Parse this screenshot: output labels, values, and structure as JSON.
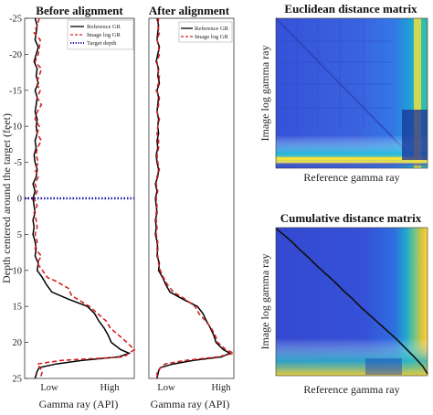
{
  "chart_data": [
    {
      "type": "line",
      "title": "Before alignment",
      "xlabel": "Gamma ray (API)",
      "ylabel": "Depth centered around the target (feet)",
      "xticklabels": [
        "Low",
        "High"
      ],
      "xlim": [
        0,
        1.05
      ],
      "ylim": [
        25,
        -25
      ],
      "yticks": [
        -25,
        -20,
        -15,
        -10,
        -5,
        0,
        5,
        10,
        15,
        20,
        25
      ],
      "legend": [
        "Reference GR",
        "Image log GR",
        "Target depth"
      ],
      "legend_position": "top-right",
      "series": [
        {
          "name": "Reference GR",
          "color": "#000000",
          "style": "solid",
          "points": [
            [
              0.1,
              -25
            ],
            [
              0.12,
              -24
            ],
            [
              0.11,
              -23
            ],
            [
              0.1,
              -22
            ],
            [
              0.13,
              -21
            ],
            [
              0.11,
              -20
            ],
            [
              0.09,
              -19
            ],
            [
              0.12,
              -18
            ],
            [
              0.11,
              -17
            ],
            [
              0.13,
              -16
            ],
            [
              0.1,
              -15
            ],
            [
              0.12,
              -14
            ],
            [
              0.11,
              -13
            ],
            [
              0.1,
              -12
            ],
            [
              0.12,
              -11
            ],
            [
              0.11,
              -10
            ],
            [
              0.12,
              -9
            ],
            [
              0.1,
              -8
            ],
            [
              0.11,
              -7
            ],
            [
              0.09,
              -6
            ],
            [
              0.1,
              -5
            ],
            [
              0.12,
              -4
            ],
            [
              0.11,
              -3
            ],
            [
              0.08,
              -2
            ],
            [
              0.1,
              -1
            ],
            [
              0.08,
              0
            ],
            [
              0.09,
              1
            ],
            [
              0.1,
              2
            ],
            [
              0.08,
              3
            ],
            [
              0.09,
              4
            ],
            [
              0.08,
              5
            ],
            [
              0.1,
              6
            ],
            [
              0.11,
              7
            ],
            [
              0.1,
              8
            ],
            [
              0.13,
              9
            ],
            [
              0.12,
              10
            ],
            [
              0.17,
              11
            ],
            [
              0.21,
              12
            ],
            [
              0.26,
              13
            ],
            [
              0.42,
              14
            ],
            [
              0.6,
              15
            ],
            [
              0.67,
              16
            ],
            [
              0.71,
              17
            ],
            [
              0.76,
              18
            ],
            [
              0.8,
              19
            ],
            [
              0.83,
              20
            ],
            [
              0.92,
              21
            ],
            [
              1.0,
              21.5
            ],
            [
              0.9,
              22
            ],
            [
              0.55,
              22.5
            ],
            [
              0.3,
              23
            ],
            [
              0.14,
              23.5
            ],
            [
              0.12,
              24
            ],
            [
              0.1,
              25
            ]
          ]
        },
        {
          "name": "Image log GR",
          "color": "#d42020",
          "style": "dashed",
          "points": [
            [
              0.14,
              -25
            ],
            [
              0.12,
              -24
            ],
            [
              0.09,
              -23
            ],
            [
              0.15,
              -22
            ],
            [
              0.14,
              -21
            ],
            [
              0.13,
              -20
            ],
            [
              0.1,
              -19
            ],
            [
              0.16,
              -18
            ],
            [
              0.14,
              -17
            ],
            [
              0.11,
              -16
            ],
            [
              0.15,
              -15
            ],
            [
              0.12,
              -14
            ],
            [
              0.16,
              -13
            ],
            [
              0.12,
              -12
            ],
            [
              0.1,
              -11
            ],
            [
              0.14,
              -10
            ],
            [
              0.12,
              -9
            ],
            [
              0.16,
              -8
            ],
            [
              0.12,
              -7
            ],
            [
              0.11,
              -6
            ],
            [
              0.13,
              -5
            ],
            [
              0.1,
              -4
            ],
            [
              0.13,
              -3
            ],
            [
              0.1,
              -2
            ],
            [
              0.12,
              -1
            ],
            [
              0.09,
              0
            ],
            [
              0.12,
              1
            ],
            [
              0.09,
              2
            ],
            [
              0.11,
              3
            ],
            [
              0.12,
              4
            ],
            [
              0.1,
              5
            ],
            [
              0.12,
              6
            ],
            [
              0.1,
              7
            ],
            [
              0.16,
              8
            ],
            [
              0.12,
              9
            ],
            [
              0.17,
              10
            ],
            [
              0.22,
              11
            ],
            [
              0.3,
              11.5
            ],
            [
              0.42,
              12.5
            ],
            [
              0.45,
              13.5
            ],
            [
              0.62,
              15
            ],
            [
              0.7,
              16
            ],
            [
              0.78,
              17
            ],
            [
              0.82,
              18
            ],
            [
              0.9,
              19
            ],
            [
              0.98,
              20
            ],
            [
              1.05,
              21
            ],
            [
              0.95,
              22
            ],
            [
              0.35,
              22.5
            ],
            [
              0.12,
              23
            ],
            [
              0.17,
              24
            ],
            [
              0.15,
              25
            ]
          ]
        },
        {
          "name": "Target depth",
          "color": "#1a1aa8",
          "style": "dotted",
          "points": [
            [
              0,
              0
            ],
            [
              1.05,
              0
            ]
          ]
        }
      ]
    },
    {
      "type": "line",
      "title": "After alignment",
      "xlabel": "Gamma ray (API)",
      "xticklabels": [
        "Low",
        "High"
      ],
      "xlim": [
        0,
        1.05
      ],
      "ylim": [
        25,
        -25
      ],
      "legend": [
        "Reference GR",
        "Image log GR"
      ],
      "legend_position": "top-right",
      "series": [
        {
          "name": "Reference GR",
          "color": "#000000",
          "style": "solid",
          "points": [
            [
              0.1,
              -25
            ],
            [
              0.12,
              -24
            ],
            [
              0.11,
              -23
            ],
            [
              0.1,
              -22
            ],
            [
              0.13,
              -21
            ],
            [
              0.11,
              -20
            ],
            [
              0.09,
              -19
            ],
            [
              0.12,
              -18
            ],
            [
              0.11,
              -17
            ],
            [
              0.13,
              -16
            ],
            [
              0.1,
              -15
            ],
            [
              0.12,
              -14
            ],
            [
              0.11,
              -13
            ],
            [
              0.1,
              -12
            ],
            [
              0.12,
              -11
            ],
            [
              0.11,
              -10
            ],
            [
              0.12,
              -9
            ],
            [
              0.1,
              -8
            ],
            [
              0.11,
              -7
            ],
            [
              0.09,
              -6
            ],
            [
              0.1,
              -5
            ],
            [
              0.12,
              -4
            ],
            [
              0.11,
              -3
            ],
            [
              0.08,
              -2
            ],
            [
              0.1,
              -1
            ],
            [
              0.08,
              0
            ],
            [
              0.09,
              1
            ],
            [
              0.1,
              2
            ],
            [
              0.08,
              3
            ],
            [
              0.09,
              4
            ],
            [
              0.08,
              5
            ],
            [
              0.1,
              6
            ],
            [
              0.11,
              7
            ],
            [
              0.1,
              8
            ],
            [
              0.13,
              9
            ],
            [
              0.12,
              10
            ],
            [
              0.17,
              11
            ],
            [
              0.21,
              12
            ],
            [
              0.26,
              13
            ],
            [
              0.42,
              14
            ],
            [
              0.6,
              15
            ],
            [
              0.67,
              16
            ],
            [
              0.71,
              17
            ],
            [
              0.76,
              18
            ],
            [
              0.8,
              19
            ],
            [
              0.83,
              20
            ],
            [
              0.92,
              21
            ],
            [
              1.0,
              21.5
            ],
            [
              0.9,
              22
            ],
            [
              0.55,
              22.5
            ],
            [
              0.3,
              23
            ],
            [
              0.14,
              23.5
            ],
            [
              0.12,
              24
            ],
            [
              0.1,
              25
            ]
          ]
        },
        {
          "name": "Image log GR",
          "color": "#d42020",
          "style": "dashed",
          "points": [
            [
              0.12,
              -25
            ],
            [
              0.11,
              -24
            ],
            [
              0.13,
              -23
            ],
            [
              0.1,
              -22
            ],
            [
              0.12,
              -21
            ],
            [
              0.13,
              -20
            ],
            [
              0.1,
              -19
            ],
            [
              0.11,
              -18
            ],
            [
              0.13,
              -17
            ],
            [
              0.12,
              -16
            ],
            [
              0.09,
              -15
            ],
            [
              0.13,
              -14
            ],
            [
              0.12,
              -13
            ],
            [
              0.1,
              -12
            ],
            [
              0.13,
              -11
            ],
            [
              0.11,
              -10
            ],
            [
              0.1,
              -9
            ],
            [
              0.12,
              -8
            ],
            [
              0.12,
              -7
            ],
            [
              0.1,
              -6
            ],
            [
              0.11,
              -5
            ],
            [
              0.13,
              -4
            ],
            [
              0.1,
              -3
            ],
            [
              0.09,
              -2
            ],
            [
              0.11,
              -1
            ],
            [
              0.09,
              0
            ],
            [
              0.1,
              1
            ],
            [
              0.09,
              2
            ],
            [
              0.09,
              3
            ],
            [
              0.1,
              4
            ],
            [
              0.09,
              5
            ],
            [
              0.11,
              6
            ],
            [
              0.1,
              7
            ],
            [
              0.11,
              8
            ],
            [
              0.12,
              9
            ],
            [
              0.14,
              10
            ],
            [
              0.18,
              11
            ],
            [
              0.23,
              12
            ],
            [
              0.3,
              13
            ],
            [
              0.45,
              14
            ],
            [
              0.57,
              15
            ],
            [
              0.62,
              16
            ],
            [
              0.7,
              17
            ],
            [
              0.77,
              18
            ],
            [
              0.82,
              19
            ],
            [
              0.85,
              20
            ],
            [
              0.95,
              21
            ],
            [
              1.05,
              21.5
            ],
            [
              0.85,
              22
            ],
            [
              0.45,
              22.5
            ],
            [
              0.2,
              23
            ],
            [
              0.1,
              24
            ],
            [
              0.1,
              25
            ]
          ]
        }
      ]
    },
    {
      "type": "heatmap",
      "title": "Euclidean distance matrix",
      "xlabel": "Reference gamma ray",
      "ylabel": "Image log gamma ray",
      "colormap": "parula"
    },
    {
      "type": "heatmap",
      "title": "Cumulative distance matrix",
      "xlabel": "Reference gamma ray",
      "ylabel": "Image log gamma ray",
      "colormap": "parula",
      "overlay": "warping path"
    }
  ]
}
